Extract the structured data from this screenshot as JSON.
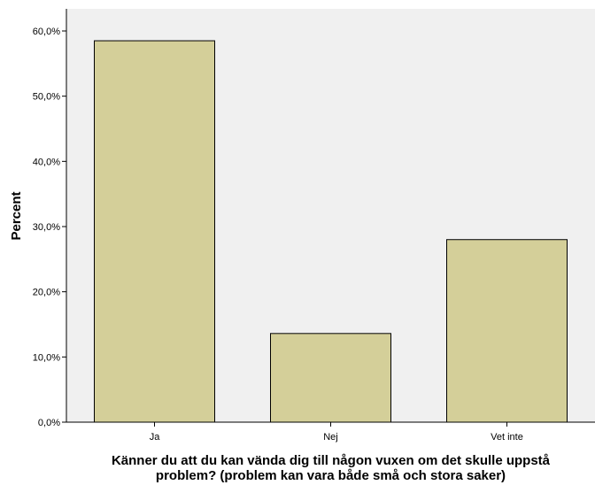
{
  "chart_data": {
    "type": "bar",
    "categories": [
      "Ja",
      "Nej",
      "Vet inte"
    ],
    "values": [
      58.5,
      13.6,
      28.0
    ],
    "ylabel": "Percent",
    "xlabel_lines": [
      "Känner du att du kan vända dig till någon vuxen om det skulle uppstå",
      "problem? (problem kan vara både små och stora saker)"
    ],
    "ylim": [
      0,
      60
    ],
    "yticks": [
      0,
      10,
      20,
      30,
      40,
      50,
      60
    ],
    "ytick_labels": [
      "0,0%",
      "10,0%",
      "20,0%",
      "30,0%",
      "40,0%",
      "50,0%",
      "60,0%"
    ],
    "grid": false,
    "colors": {
      "bar_fill": "#d4cf99",
      "bar_stroke": "#000000",
      "plot_bg": "#f0f0f0"
    }
  }
}
